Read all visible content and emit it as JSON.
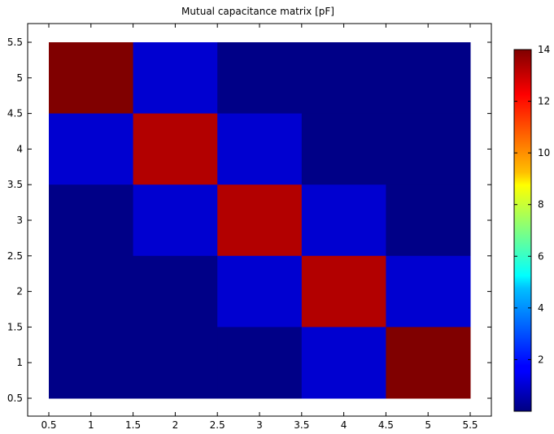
{
  "chart_data": {
    "type": "heatmap",
    "title": "Mutual capacitance matrix [pF]",
    "xlabel": "",
    "ylabel": "",
    "xlim": [
      0.5,
      5.5
    ],
    "ylim": [
      0.5,
      5.5
    ],
    "x": [
      1,
      2,
      3,
      4,
      5
    ],
    "y": [
      1,
      2,
      3,
      4,
      5
    ],
    "x_ticks": [
      "0.5",
      "1",
      "1.5",
      "2",
      "2.5",
      "3",
      "3.5",
      "4",
      "4.5",
      "5",
      "5.5"
    ],
    "y_ticks": [
      "0.5",
      "1",
      "1.5",
      "2",
      "2.5",
      "3",
      "3.5",
      "4",
      "4.5",
      "5",
      "5.5"
    ],
    "values_by_row": [
      {
        "y": 5,
        "values": [
          14.1,
          1.1,
          0.1,
          0.1,
          0.1
        ]
      },
      {
        "y": 4,
        "values": [
          1.1,
          13.3,
          1.1,
          0.1,
          0.1
        ]
      },
      {
        "y": 3,
        "values": [
          0.1,
          1.1,
          13.3,
          1.1,
          0.1
        ]
      },
      {
        "y": 2,
        "values": [
          0.1,
          0.1,
          1.1,
          13.3,
          1.1
        ]
      },
      {
        "y": 1,
        "values": [
          0.1,
          0.1,
          0.1,
          1.1,
          14.1
        ]
      }
    ],
    "colorbar": {
      "colormap": "jet",
      "range": [
        0,
        14
      ],
      "ticks": [
        2,
        4,
        6,
        8,
        10,
        12,
        14
      ],
      "tick_labels": [
        "2",
        "4",
        "6",
        "8",
        "10",
        "12",
        "14"
      ]
    },
    "grid": false,
    "background": "#ffffff"
  }
}
